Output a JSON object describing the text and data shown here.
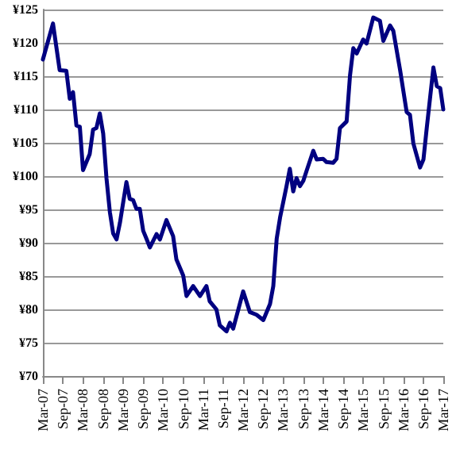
{
  "chart_data": {
    "type": "line",
    "x": [
      "2007-03",
      "2007-06",
      "2007-08",
      "2007-10",
      "2007-11",
      "2007-12",
      "2008-01",
      "2008-02",
      "2008-03",
      "2008-05",
      "2008-06",
      "2008-07",
      "2008-08",
      "2008-09",
      "2008-10",
      "2008-11",
      "2008-12",
      "2009-01",
      "2009-02",
      "2009-04",
      "2009-05",
      "2009-06",
      "2009-07",
      "2009-08",
      "2009-09",
      "2009-10",
      "2009-11",
      "2010-01",
      "2010-02",
      "2010-04",
      "2010-06",
      "2010-07",
      "2010-09",
      "2010-10",
      "2010-12",
      "2011-02",
      "2011-04",
      "2011-05",
      "2011-07",
      "2011-08",
      "2011-10",
      "2011-11",
      "2011-12",
      "2012-03",
      "2012-05",
      "2012-07",
      "2012-09",
      "2012-11",
      "2012-12",
      "2013-01",
      "2013-02",
      "2013-04",
      "2013-05",
      "2013-06",
      "2013-07",
      "2013-08",
      "2013-09",
      "2013-10",
      "2013-12",
      "2014-01",
      "2014-03",
      "2014-04",
      "2014-06",
      "2014-07",
      "2014-08",
      "2014-10",
      "2014-11",
      "2014-12",
      "2015-01",
      "2015-03",
      "2015-04",
      "2015-06",
      "2015-08",
      "2015-09",
      "2015-11",
      "2015-12",
      "2016-02",
      "2016-04",
      "2016-05",
      "2016-06",
      "2016-08",
      "2016-09",
      "2016-10",
      "2016-12",
      "2017-01",
      "2017-02",
      "2017-03"
    ],
    "series": [
      {
        "color": "#000080",
        "values": [
          117.5,
          122.9,
          115.9,
          115.8,
          111.6,
          112.6,
          107.6,
          107.4,
          100.9,
          103.3,
          107,
          107.2,
          109.4,
          106.4,
          99.7,
          94.6,
          91.4,
          90.5,
          93,
          99.1,
          96.6,
          96.4,
          95.1,
          95.1,
          91.8,
          90.6,
          89.3,
          91.3,
          90.5,
          93.4,
          91,
          87.5,
          85.1,
          82,
          83.5,
          82,
          83.5,
          81.2,
          80,
          77.6,
          76.7,
          78,
          77.1,
          82.7,
          79.6,
          79.2,
          78.4,
          80.8,
          83.5,
          90.6,
          93.8,
          98.5,
          101.1,
          97.7,
          99.7,
          98.5,
          99.3,
          100.8,
          103.8,
          102.5,
          102.6,
          102.1,
          102,
          102.6,
          107.2,
          108.2,
          115.1,
          119.2,
          118.4,
          120.5,
          119.9,
          123.8,
          123.3,
          120.3,
          122.6,
          121.8,
          115.9,
          109.6,
          109.2,
          104.9,
          101.3,
          102.5,
          107.2,
          116.3,
          113.5,
          113.2,
          110
        ]
      }
    ],
    "xlim": [
      "2007-03",
      "2017-03"
    ],
    "xticks": [
      {
        "value": "2007-03",
        "label": "Mar-07"
      },
      {
        "value": "2007-09",
        "label": "Sep-07"
      },
      {
        "value": "2008-03",
        "label": "Mar-08"
      },
      {
        "value": "2008-09",
        "label": "Sep-08"
      },
      {
        "value": "2009-03",
        "label": "Mar-09"
      },
      {
        "value": "2009-09",
        "label": "Sep-09"
      },
      {
        "value": "2010-03",
        "label": "Mar-10"
      },
      {
        "value": "2010-09",
        "label": "Sep-10"
      },
      {
        "value": "2011-03",
        "label": "Mar-11"
      },
      {
        "value": "2011-09",
        "label": "Sep-11"
      },
      {
        "value": "2012-03",
        "label": "Mar-12"
      },
      {
        "value": "2012-09",
        "label": "Sep-12"
      },
      {
        "value": "2013-03",
        "label": "Mar-13"
      },
      {
        "value": "2013-09",
        "label": "Sep-13"
      },
      {
        "value": "2014-03",
        "label": "Mar-14"
      },
      {
        "value": "2014-09",
        "label": "Sep-14"
      },
      {
        "value": "2015-03",
        "label": "Mar-15"
      },
      {
        "value": "2015-09",
        "label": "Sep-15"
      },
      {
        "value": "2016-03",
        "label": "Mar-16"
      },
      {
        "value": "2016-09",
        "label": "Sep-16"
      },
      {
        "value": "2017-03",
        "label": "Mar-17"
      }
    ],
    "ylim": [
      70,
      125
    ],
    "yticks": [
      {
        "value": 70,
        "label": "¥70"
      },
      {
        "value": 75,
        "label": "¥75"
      },
      {
        "value": 80,
        "label": "¥80"
      },
      {
        "value": 85,
        "label": "¥85"
      },
      {
        "value": 90,
        "label": "¥90"
      },
      {
        "value": 95,
        "label": "¥95"
      },
      {
        "value": 100,
        "label": "¥100"
      },
      {
        "value": 105,
        "label": "¥105"
      },
      {
        "value": 110,
        "label": "¥110"
      },
      {
        "value": 115,
        "label": "¥115"
      },
      {
        "value": 120,
        "label": "¥120"
      },
      {
        "value": 125,
        "label": "¥125"
      }
    ],
    "grid": "y",
    "marker": "none"
  }
}
